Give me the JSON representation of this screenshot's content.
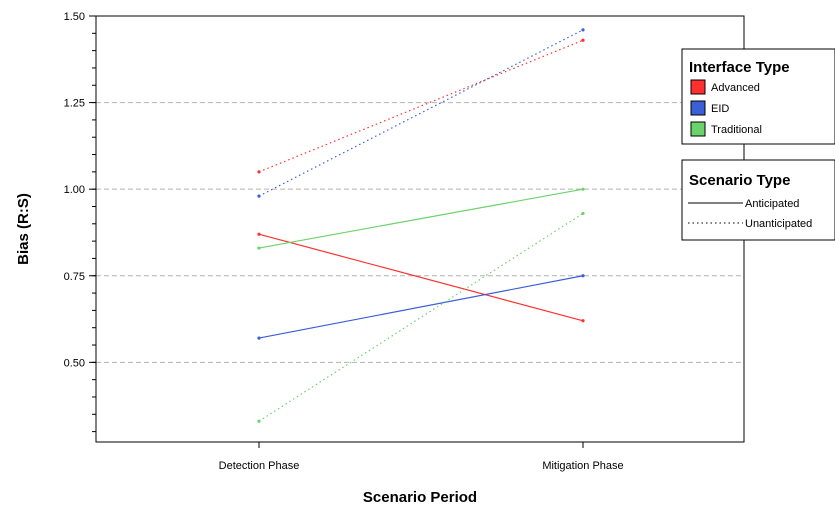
{
  "chart_data": {
    "type": "line",
    "xlabel": "Scenario Period",
    "ylabel": "Bias (R:S)",
    "categories": [
      "Detection Phase",
      "Mitigation Phase"
    ],
    "ylim": [
      0.27,
      1.5
    ],
    "yticks": [
      "0.50",
      "0.75",
      "1.00",
      "1.25",
      "1.50"
    ],
    "grid": true,
    "legends": [
      {
        "title": "Interface Type",
        "entries": [
          {
            "name": "Advanced",
            "color": "#ff3030"
          },
          {
            "name": "EID",
            "color": "#3a5fd6"
          },
          {
            "name": "Traditional",
            "color": "#6bd36b"
          }
        ]
      },
      {
        "title": "Scenario Type",
        "entries": [
          {
            "name": "Anticipated",
            "style": "solid"
          },
          {
            "name": "Unanticipated",
            "style": "dotted"
          }
        ]
      }
    ],
    "series": [
      {
        "interface": "Advanced",
        "scenario": "Anticipated",
        "color": "#ff3030",
        "style": "solid",
        "values": [
          0.87,
          0.62
        ]
      },
      {
        "interface": "Advanced",
        "scenario": "Unanticipated",
        "color": "#ff3030",
        "style": "dotted",
        "values": [
          1.05,
          1.43
        ]
      },
      {
        "interface": "EID",
        "scenario": "Anticipated",
        "color": "#3a5fd6",
        "style": "solid",
        "values": [
          0.57,
          0.75
        ]
      },
      {
        "interface": "EID",
        "scenario": "Unanticipated",
        "color": "#3a5fd6",
        "style": "dotted",
        "values": [
          0.98,
          1.46
        ]
      },
      {
        "interface": "Traditional",
        "scenario": "Anticipated",
        "color": "#6bd36b",
        "style": "solid",
        "values": [
          0.83,
          1.0
        ]
      },
      {
        "interface": "Traditional",
        "scenario": "Unanticipated",
        "color": "#6bd36b",
        "style": "dotted",
        "values": [
          0.33,
          0.93
        ]
      }
    ]
  }
}
